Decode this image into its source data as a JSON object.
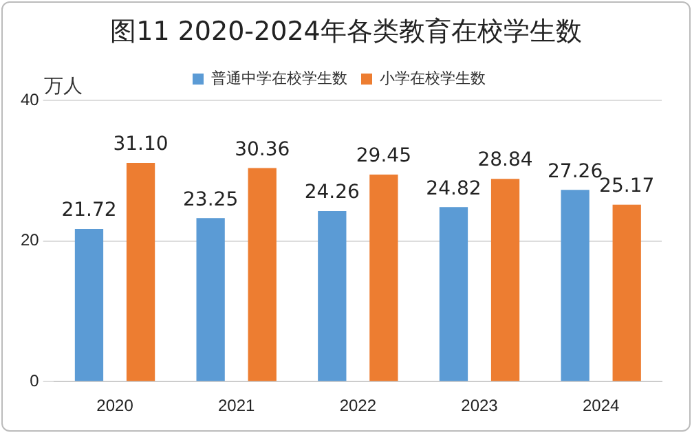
{
  "chart_data": {
    "type": "bar",
    "title": "图11  2020-2024年各类教育在校学生数",
    "ylabel": "万人",
    "categories": [
      "2020",
      "2021",
      "2022",
      "2023",
      "2024"
    ],
    "series": [
      {
        "name": "普通中学在校学生数",
        "color": "#5b9bd5",
        "values": [
          21.72,
          23.25,
          24.26,
          24.82,
          27.26
        ],
        "value_labels": [
          "21.72",
          "23.25",
          "24.26",
          "24.82",
          "27.26"
        ]
      },
      {
        "name": "小学在校学生数",
        "color": "#ed7d31",
        "values": [
          31.1,
          30.36,
          29.45,
          28.84,
          25.17
        ],
        "value_labels": [
          "31.10",
          "30.36",
          "29.45",
          "28.84",
          "25.17"
        ]
      }
    ],
    "ylim": [
      0,
      40
    ],
    "yticks": [
      0,
      20,
      40
    ],
    "grid": "y",
    "legend": "top"
  }
}
